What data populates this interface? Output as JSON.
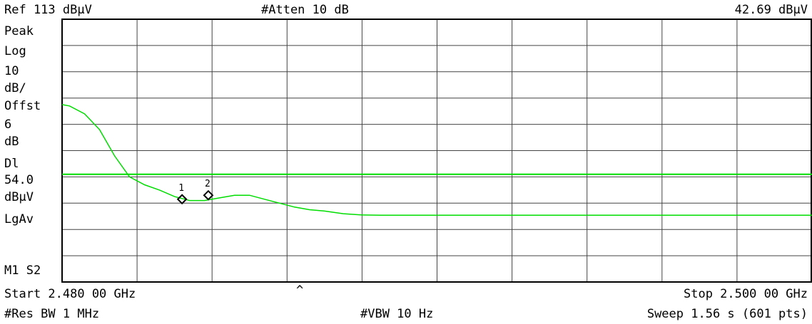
{
  "header": {
    "ref_level": "Ref 113 dBμV",
    "attenuation": "#Atten 10 dB",
    "marker_readout": "42.69 dBμV"
  },
  "sidebar": {
    "labels": [
      "Peak",
      "Log",
      "10",
      "dB/",
      "Offst",
      "6",
      "dB",
      "Dl",
      "54.0",
      "dBμV",
      "LgAv",
      "M1  S2"
    ]
  },
  "footer": {
    "start": "Start 2.480 00 GHz",
    "caret": "^",
    "stop": "Stop 2.500 00 GHz",
    "rbw": "#Res BW 1 MHz",
    "vbw": "#VBW 10 Hz",
    "sweep": "Sweep 1.56 s (601 pts)"
  },
  "colors": {
    "trace": "#00dd00",
    "grid": "#444444",
    "background": "#ffffff",
    "text": "#000000"
  },
  "chart_data": {
    "type": "line",
    "xlim": [
      2.48,
      2.5
    ],
    "ylim": [
      13,
      113
    ],
    "x_unit": "GHz",
    "y_unit": "dBμV",
    "scale": "log 10 dB/div",
    "grid": true,
    "display_line": 54.0,
    "series": [
      {
        "x": [
          2.48,
          2.4802,
          2.4806,
          2.481,
          2.4814,
          2.4818,
          2.4822,
          2.4826,
          2.483,
          2.4834,
          2.4838,
          2.4842,
          2.4846,
          2.485,
          2.4854,
          2.4858,
          2.4862,
          2.4866,
          2.487,
          2.4875,
          2.488,
          2.4885,
          2.489,
          2.4896,
          2.49,
          2.4955,
          2.4965,
          2.4974,
          2.5
        ],
        "y": [
          80.5,
          80,
          77,
          71,
          61,
          53,
          50,
          48,
          45.5,
          44,
          44,
          45,
          46,
          46,
          44.5,
          43,
          41.5,
          40.5,
          40,
          39,
          38.5,
          38.4,
          38.4,
          38.4,
          38.4,
          38.4,
          38.4,
          38.4,
          38.4
        ]
      }
    ],
    "markers": [
      {
        "label": "1",
        "x": 2.4832,
        "y": 44.5
      },
      {
        "label": "2",
        "x": 2.4839,
        "y": 46.0
      }
    ]
  }
}
